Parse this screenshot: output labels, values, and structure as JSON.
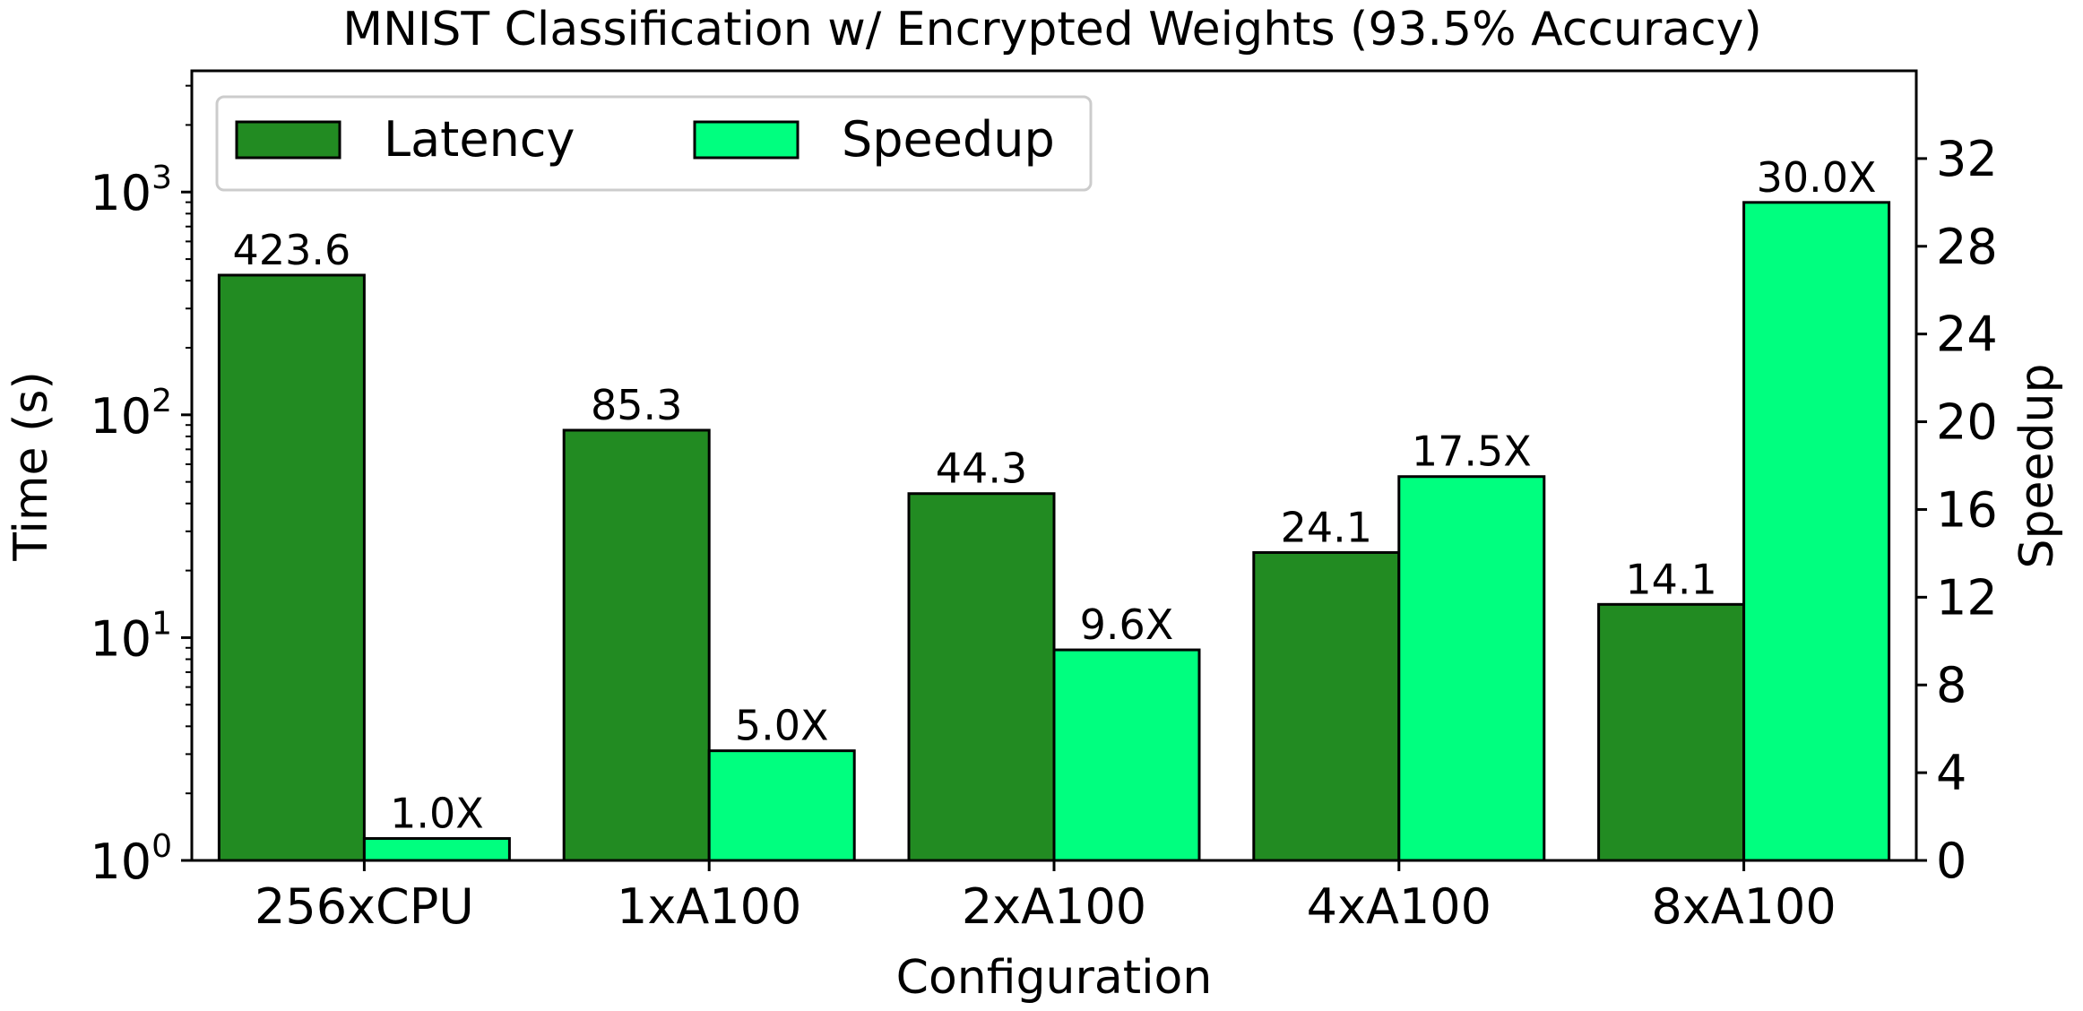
{
  "chart_data": {
    "type": "bar",
    "title": "MNIST Classification w/ Encrypted Weights (93.5% Accuracy)",
    "xlabel": "Configuration",
    "ylabel_left": "Time (s)",
    "ylabel_right": "Speedup",
    "categories": [
      "256xCPU",
      "1xA100",
      "2xA100",
      "4xA100",
      "8xA100"
    ],
    "left_axis": {
      "scale": "log",
      "ylim": [
        1,
        3500
      ],
      "ticks": [
        {
          "value": 1,
          "base": "10",
          "exp": "0"
        },
        {
          "value": 10,
          "base": "10",
          "exp": "1"
        },
        {
          "value": 100,
          "base": "10",
          "exp": "2"
        },
        {
          "value": 1000,
          "base": "10",
          "exp": "3"
        }
      ]
    },
    "right_axis": {
      "scale": "linear",
      "ylim": [
        0,
        36
      ],
      "ticks": [
        "0",
        "4",
        "8",
        "12",
        "16",
        "20",
        "24",
        "28",
        "32"
      ]
    },
    "series": [
      {
        "name": "Latency",
        "axis": "left",
        "color": "#228B22",
        "values": [
          423.6,
          85.3,
          44.3,
          24.1,
          14.1
        ],
        "labels": [
          "423.6",
          "85.3",
          "44.3",
          "24.1",
          "14.1"
        ]
      },
      {
        "name": "Speedup",
        "axis": "right",
        "color": "#00FF7F",
        "values": [
          1.0,
          5.0,
          9.6,
          17.5,
          30.0
        ],
        "labels": [
          "1.0X",
          "5.0X",
          "9.6X",
          "17.5X",
          "30.0X"
        ]
      }
    ],
    "legend": {
      "position": "top-left",
      "columns": 2
    },
    "grid": false
  }
}
